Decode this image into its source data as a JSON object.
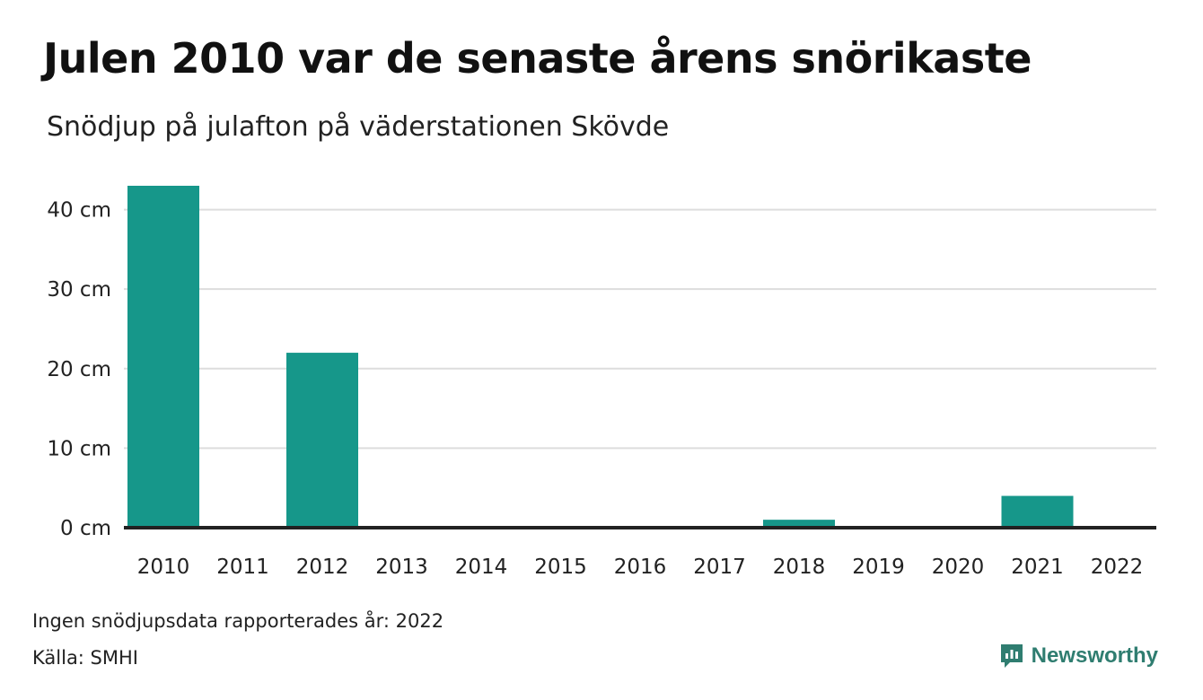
{
  "header": {
    "title": "Julen 2010 var de senaste årens snörikaste",
    "subtitle": "Snödjup på julafton på väderstationen Skövde"
  },
  "footer": {
    "note": "Ingen snödjupsdata rapporterades år: 2022",
    "source": "Källa: SMHI",
    "brand": "Newsworthy"
  },
  "colors": {
    "bar": "#16978a",
    "grid": "#dddddd",
    "axis": "#222222",
    "brand": "#2f7d70"
  },
  "chart_data": {
    "type": "bar",
    "title": "Julen 2010 var de senaste årens snörikaste",
    "subtitle": "Snödjup på julafton på väderstationen Skövde",
    "xlabel": "",
    "ylabel": "",
    "categories": [
      "2010",
      "2011",
      "2012",
      "2013",
      "2014",
      "2015",
      "2016",
      "2017",
      "2018",
      "2019",
      "2020",
      "2021",
      "2022"
    ],
    "values": [
      43,
      0,
      22,
      0,
      0,
      0,
      0,
      0,
      1,
      0,
      0,
      4,
      null
    ],
    "ylim": [
      0,
      43
    ],
    "yticks": [
      0,
      10,
      20,
      30,
      40
    ],
    "ytick_labels": [
      "0 cm",
      "10 cm",
      "20 cm",
      "30 cm",
      "40 cm"
    ],
    "unit": "cm",
    "grid": true,
    "legend": "none"
  }
}
